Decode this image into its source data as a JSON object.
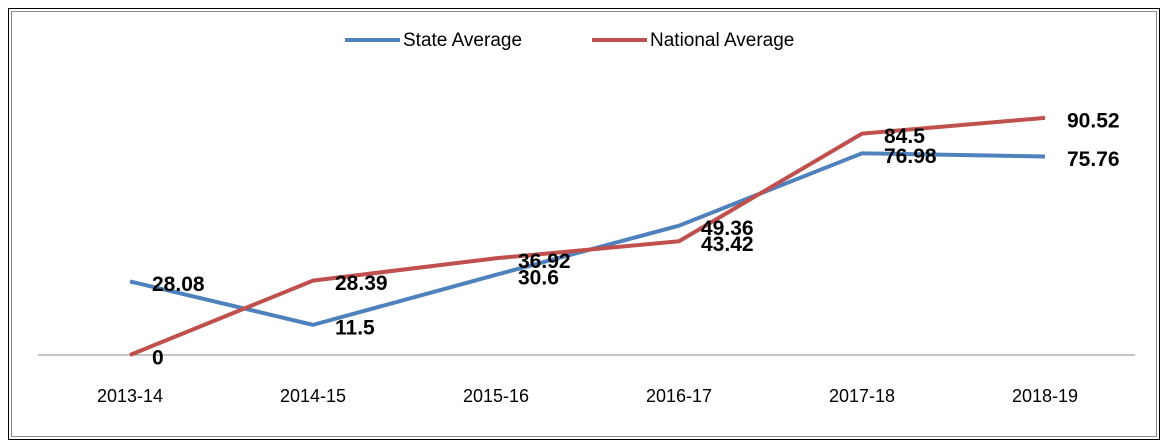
{
  "chart_data": {
    "type": "line",
    "categories": [
      "2013-14",
      "2014-15",
      "2015-16",
      "2016-17",
      "2017-18",
      "2018-19"
    ],
    "series": [
      {
        "name": "State Average",
        "color": "#4f81bd",
        "values": [
          28.08,
          11.5,
          30.6,
          49.36,
          76.98,
          75.76
        ]
      },
      {
        "name": "National Average",
        "color": "#c0504d",
        "values": [
          0,
          28.39,
          36.92,
          43.42,
          84.5,
          90.52
        ]
      }
    ],
    "ylim": [
      0,
      100
    ],
    "legend": "top"
  }
}
